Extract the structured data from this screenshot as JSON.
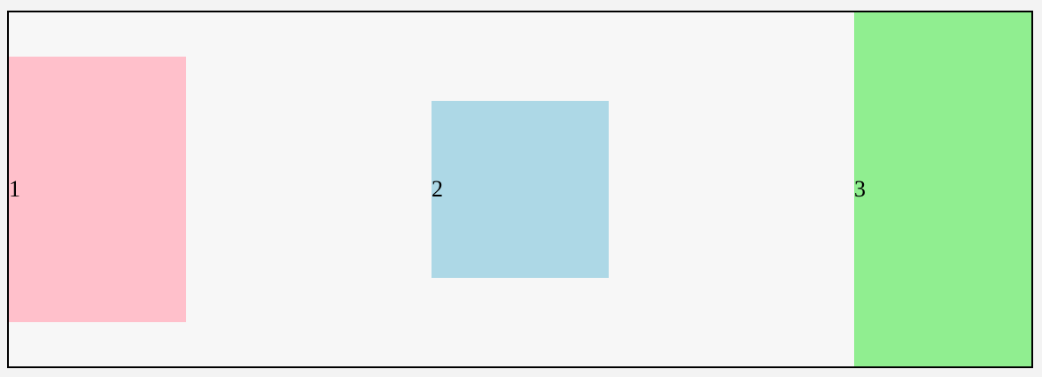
{
  "items": [
    {
      "label": "1",
      "color": "#ffc0cb"
    },
    {
      "label": "2",
      "color": "#add8e6"
    },
    {
      "label": "3",
      "color": "#90ee90"
    }
  ]
}
